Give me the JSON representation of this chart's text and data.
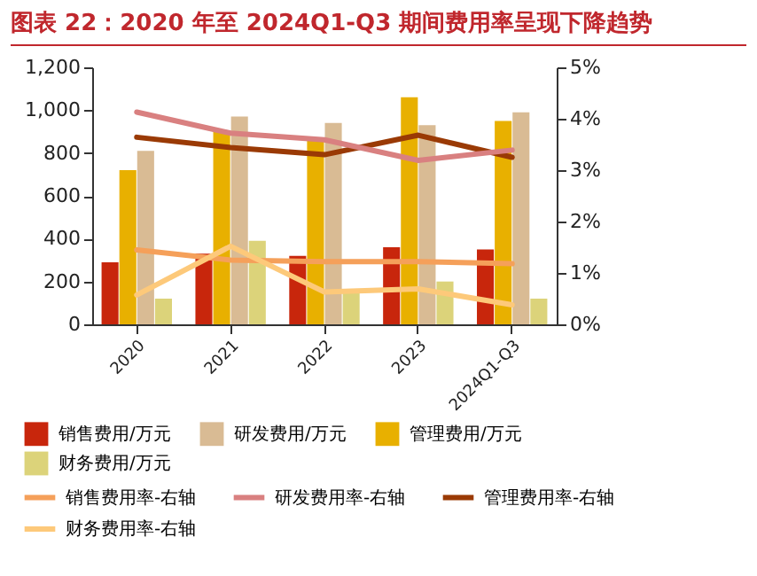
{
  "chart_data": {
    "type": "bar",
    "title": "图表 22：2020 年至 2024Q1-Q3 期间费用率呈现下降趋势",
    "categories": [
      "2020",
      "2021",
      "2022",
      "2023",
      "2024Q1-Q3"
    ],
    "series": [
      {
        "name": "销售费用/万元",
        "color": "#c8260c",
        "values": [
          290,
          330,
          320,
          360,
          350
        ]
      },
      {
        "name": "管理费用/万元",
        "color": "#e8b000",
        "values": [
          720,
          900,
          860,
          1060,
          950
        ]
      },
      {
        "name": "研发费用/万元",
        "color": "#d9bb94",
        "values": [
          810,
          970,
          940,
          930,
          990
        ]
      },
      {
        "name": "财务费用/万元",
        "color": "#dcd37a",
        "values": [
          120,
          390,
          150,
          200,
          120
        ]
      },
      {
        "name": "销售费用率-右轴",
        "color": "#f5a05a",
        "type": "line",
        "axis": "y2",
        "values": [
          1.45,
          1.25,
          1.22,
          1.22,
          1.18
        ]
      },
      {
        "name": "管理费用率-右轴",
        "color": "#9a3a05",
        "type": "line",
        "axis": "y2",
        "values": [
          3.64,
          3.44,
          3.3,
          3.68,
          3.25
        ]
      },
      {
        "name": "研发费用率-右轴",
        "color": "#d98080",
        "type": "line",
        "axis": "y2",
        "values": [
          4.13,
          3.72,
          3.59,
          3.19,
          3.39
        ]
      },
      {
        "name": "财务费用率-右轴",
        "color": "#fdc97a",
        "type": "line",
        "axis": "y2",
        "values": [
          0.57,
          1.52,
          0.63,
          0.69,
          0.38
        ]
      }
    ],
    "ylim": [
      0,
      1200
    ],
    "yticks": [
      0,
      200,
      400,
      600,
      800,
      {
        "value": 1000,
        "label": "1,000"
      },
      {
        "value": 1200,
        "label": "1,200"
      }
    ],
    "y2lim": [
      0,
      5
    ],
    "y2ticks": [
      {
        "value": 0,
        "label": "0%"
      },
      {
        "value": 1,
        "label": "1%"
      },
      {
        "value": 2,
        "label": "2%"
      },
      {
        "value": 3,
        "label": "3%"
      },
      {
        "value": 4,
        "label": "4%"
      },
      {
        "value": 5,
        "label": "5%"
      }
    ],
    "grid": false,
    "legend": "bottom"
  }
}
